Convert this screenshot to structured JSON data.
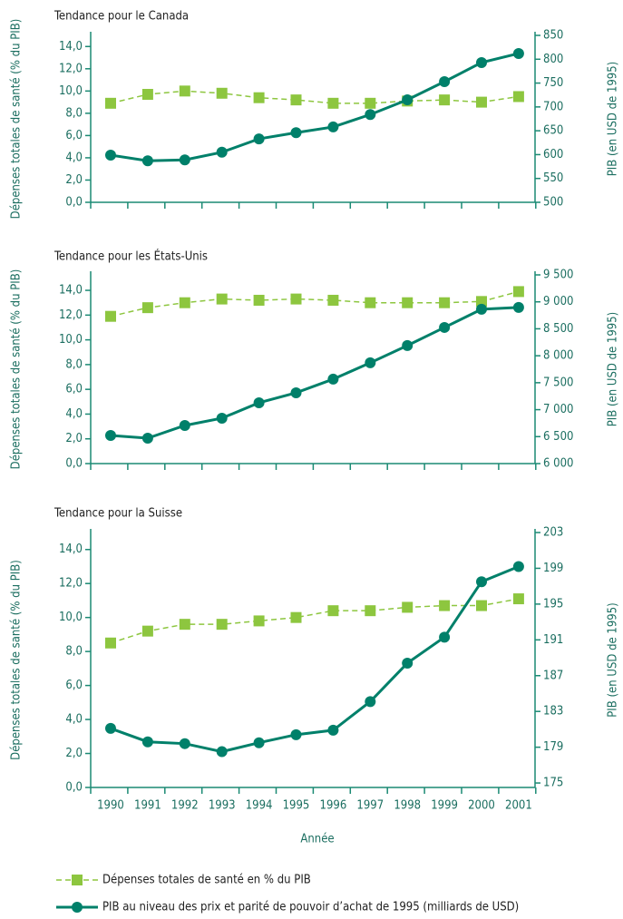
{
  "chart_data": [
    {
      "type": "line",
      "title": "Tendance pour le Canada",
      "ylabel": "Dépenses totales de santé (% du PIB)",
      "y2label": "PIB (en USD de 1995)",
      "ylim": [
        0,
        15
      ],
      "yticks": [
        {
          "value": 0,
          "label": "0,0"
        },
        {
          "value": 2,
          "label": "2,0"
        },
        {
          "value": 4,
          "label": "4,0"
        },
        {
          "value": 6,
          "label": "6,0"
        },
        {
          "value": 8,
          "label": "8,0"
        },
        {
          "value": 10,
          "label": "10,0"
        },
        {
          "value": 12,
          "label": "12,0"
        },
        {
          "value": 14,
          "label": "14,0"
        }
      ],
      "y2lim": [
        500,
        850
      ],
      "y2ticks": [
        500,
        550,
        600,
        650,
        700,
        750,
        800,
        850
      ],
      "series": [
        {
          "name": "Dépenses totales de santé en % du PIB",
          "color": "#8dc63f",
          "values": [
            8.9,
            9.7,
            10.0,
            9.8,
            9.4,
            9.2,
            8.9,
            8.9,
            9.1,
            9.2,
            9.0,
            9.5
          ]
        },
        {
          "name": "PIB au niveau des prix et parité de pouvoir d’achat de 1995 (milliards de USD)",
          "color": "#00806a",
          "axis": "y2",
          "values": [
            599,
            587,
            589,
            605,
            633,
            646,
            658,
            684,
            715,
            753,
            793,
            812
          ]
        }
      ]
    },
    {
      "type": "line",
      "title": "Tendance pour les États-Unis",
      "ylabel": "Dépenses totales de santé (% du PIB)",
      "y2label": "PIB (en USD de 1995)",
      "ylim": [
        0,
        15.25
      ],
      "yticks": [
        {
          "value": 0,
          "label": "0,0"
        },
        {
          "value": 2,
          "label": "2,0"
        },
        {
          "value": 4,
          "label": "4,0"
        },
        {
          "value": 6,
          "label": "6,0"
        },
        {
          "value": 8,
          "label": "8,0"
        },
        {
          "value": 10,
          "label": "10,0"
        },
        {
          "value": 12,
          "label": "12,0"
        },
        {
          "value": 14,
          "label": "14,0"
        }
      ],
      "y2lim": [
        6000,
        9500
      ],
      "y2ticks": [
        {
          "value": 6000,
          "label": "6 000"
        },
        {
          "value": 6500,
          "label": "6 500"
        },
        {
          "value": 7000,
          "label": "7 000"
        },
        {
          "value": 7500,
          "label": "7 500"
        },
        {
          "value": 8000,
          "label": "8 000"
        },
        {
          "value": 8500,
          "label": "8 500"
        },
        {
          "value": 9000,
          "label": "9 000"
        },
        {
          "value": 9500,
          "label": "9 500"
        }
      ],
      "series": [
        {
          "color": "#8dc63f",
          "values": [
            11.9,
            12.6,
            13.0,
            13.3,
            13.2,
            13.3,
            13.2,
            13.0,
            13.0,
            13.0,
            13.1,
            13.9
          ]
        },
        {
          "color": "#00806a",
          "axis": "y2",
          "values": [
            6522,
            6471,
            6707,
            6842,
            7128,
            7313,
            7566,
            7869,
            8189,
            8525,
            8862,
            8896
          ]
        }
      ]
    },
    {
      "type": "line",
      "title": "Tendance pour la Suisse",
      "ylabel": "Dépenses totales de santé (% du PIB)",
      "y2label": "PIB (en USD de 1995)",
      "xlabel": "Année",
      "categories": [
        "1990",
        "1991",
        "1992",
        "1993",
        "1994",
        "1995",
        "1996",
        "1997",
        "1998",
        "1999",
        "2000",
        "2001"
      ],
      "ylim": [
        0,
        15
      ],
      "yticks": [
        {
          "value": 0,
          "label": "0,0"
        },
        {
          "value": 2,
          "label": "2,0"
        },
        {
          "value": 4,
          "label": "4,0"
        },
        {
          "value": 6,
          "label": "6,0"
        },
        {
          "value": 8,
          "label": "8,0"
        },
        {
          "value": 10,
          "label": "10,0"
        },
        {
          "value": 12,
          "label": "12,0"
        },
        {
          "value": 14,
          "label": "14,0"
        }
      ],
      "y2lim": [
        174.5,
        203
      ],
      "y2ticks": [
        175,
        179,
        183,
        187,
        191,
        195,
        199,
        203
      ],
      "series": [
        {
          "color": "#8dc63f",
          "values": [
            8.5,
            9.2,
            9.6,
            9.6,
            9.8,
            10.0,
            10.4,
            10.4,
            10.6,
            10.7,
            10.7,
            11.1
          ]
        },
        {
          "color": "#00806a",
          "axis": "y2",
          "values": [
            181.1,
            179.6,
            179.4,
            178.5,
            179.5,
            180.4,
            180.9,
            184.1,
            188.4,
            191.3,
            197.5,
            199.2
          ]
        }
      ]
    }
  ]
}
